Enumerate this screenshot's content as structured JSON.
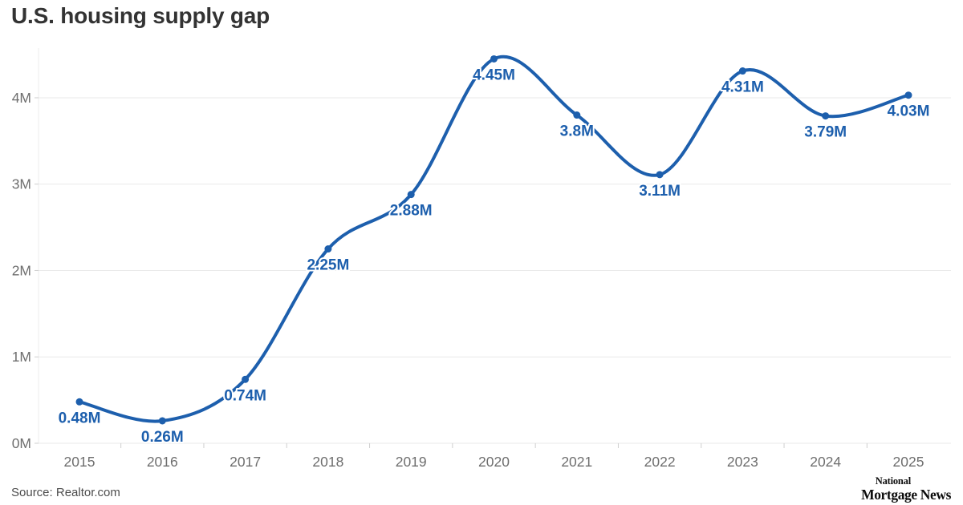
{
  "page": {
    "title": "U.S. housing supply gap",
    "source_note": "Source: Realtor.com",
    "logo": {
      "line1": "National",
      "line2": "Mortgage News"
    }
  },
  "chart_data": {
    "type": "line",
    "title": "U.S. housing supply gap",
    "x": [
      "2015",
      "2016",
      "2017",
      "2018",
      "2019",
      "2020",
      "2021",
      "2022",
      "2023",
      "2024",
      "2025"
    ],
    "values": [
      0.48,
      0.26,
      0.74,
      2.25,
      2.88,
      4.45,
      3.8,
      3.11,
      4.31,
      3.79,
      4.03
    ],
    "point_labels": [
      "0.48M",
      "0.26M",
      "0.74M",
      "2.25M",
      "2.88M",
      "4.45M",
      "3.8M",
      "3.11M",
      "4.31M",
      "3.79M",
      "4.03M"
    ],
    "y_ticks": [
      {
        "v": 0,
        "label": "0M"
      },
      {
        "v": 1,
        "label": "1M"
      },
      {
        "v": 2,
        "label": "2M"
      },
      {
        "v": 3,
        "label": "3M"
      },
      {
        "v": 4,
        "label": "4M"
      }
    ],
    "ylim": [
      0,
      4.575
    ],
    "grid": true,
    "legend": "none",
    "line_color": "#1d5fad",
    "label_color": "#1d5fad",
    "grid_color": "#e9e9e9",
    "axis_text_color": "#6e6e6e",
    "xlabel": "",
    "ylabel": ""
  }
}
